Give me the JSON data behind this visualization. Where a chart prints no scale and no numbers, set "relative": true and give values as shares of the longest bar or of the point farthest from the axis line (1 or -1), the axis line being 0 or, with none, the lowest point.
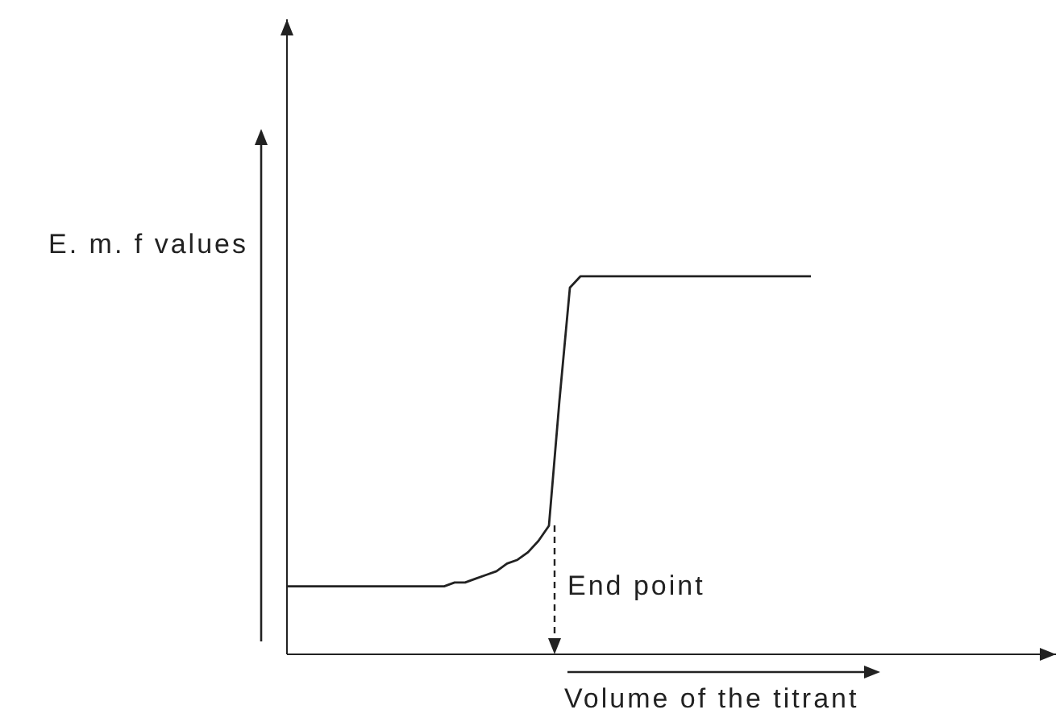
{
  "chart_data": {
    "type": "line",
    "relative": true,
    "xlabel": "Volume of the titrant",
    "ylabel": "E. m. f values",
    "annotations": [
      "End point"
    ],
    "marker": "none",
    "line_style": "solid",
    "categories": [
      null,
      null,
      null,
      null,
      null,
      null,
      null,
      null,
      null,
      null,
      null,
      null,
      null,
      null,
      null,
      null,
      null,
      null,
      null,
      null,
      null,
      null,
      null,
      null,
      null,
      null,
      null,
      null,
      null,
      null,
      null,
      null,
      null,
      null,
      null,
      null,
      null,
      null,
      null,
      null,
      null,
      null,
      null,
      null,
      null,
      null,
      null,
      null,
      null,
      null,
      null
    ],
    "series": [
      {
        "color": "#222222",
        "values": [
          0.18,
          0.18,
          0.18,
          0.18,
          0.18,
          0.18,
          0.18,
          0.18,
          0.18,
          0.18,
          0.18,
          0.18,
          0.18,
          0.18,
          0.18,
          0.18,
          0.19,
          0.19,
          0.2,
          0.21,
          0.22,
          0.24,
          0.25,
          0.27,
          0.3,
          0.34,
          0.67,
          0.97,
          1,
          1,
          1,
          1,
          1,
          1,
          1,
          1,
          1,
          1,
          1,
          1,
          1,
          1,
          1,
          1,
          1,
          1,
          1,
          1,
          1,
          1,
          1
        ]
      }
    ]
  }
}
